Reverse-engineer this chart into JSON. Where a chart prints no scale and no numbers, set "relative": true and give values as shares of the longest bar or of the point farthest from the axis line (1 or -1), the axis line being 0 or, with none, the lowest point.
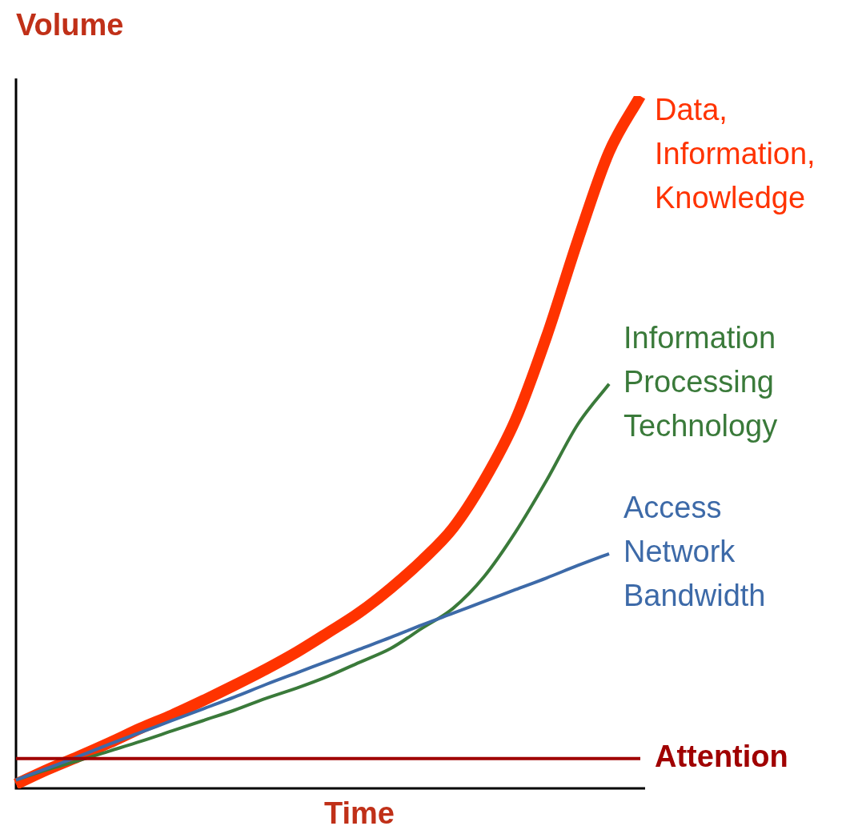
{
  "chart_data": {
    "type": "line",
    "title": "Volume",
    "xlabel": "Time",
    "relative": true,
    "tick_labels": false,
    "marker": "none",
    "legend": false,
    "categories": [
      null,
      null,
      null,
      null,
      null,
      null,
      null,
      null,
      null,
      null,
      null,
      null,
      null,
      null,
      null,
      null,
      null,
      null,
      null,
      null,
      null
    ],
    "series": [
      {
        "name": "Attention",
        "color": "#a00000",
        "values": [
          0.043,
          0.043,
          0.043,
          0.043,
          0.043,
          0.043,
          0.043,
          0.043,
          0.043,
          0.043,
          0.043,
          0.043,
          0.043,
          0.043,
          0.043,
          0.043,
          0.043,
          0.043,
          0.043,
          0.043,
          0.043
        ]
      },
      {
        "name": "Access Network Bandwidth",
        "color": "#3d6aa8",
        "values": [
          0.012,
          0.029,
          0.046,
          0.064,
          0.081,
          0.098,
          0.115,
          0.132,
          0.15,
          0.167,
          0.184,
          0.201,
          0.218,
          0.236,
          0.253,
          0.27,
          0.287,
          0.304,
          0.322,
          0.339,
          null
        ]
      },
      {
        "name": "Information Processing Technology",
        "color": "#3a7a3a",
        "values": [
          0.012,
          0.027,
          0.04,
          0.054,
          0.068,
          0.083,
          0.098,
          0.113,
          0.13,
          0.145,
          0.162,
          0.182,
          0.202,
          0.231,
          0.26,
          0.306,
          0.37,
          0.445,
          0.526,
          0.584,
          null
        ]
      },
      {
        "name": "Data, Information, Knowledge",
        "color": "#ff3300",
        "values": [
          0.006,
          0.027,
          0.046,
          0.066,
          0.087,
          0.106,
          0.127,
          0.149,
          0.172,
          0.197,
          0.225,
          0.254,
          0.289,
          0.329,
          0.376,
          0.445,
          0.532,
          0.653,
          0.792,
          0.919,
          1.0
        ]
      }
    ]
  }
}
